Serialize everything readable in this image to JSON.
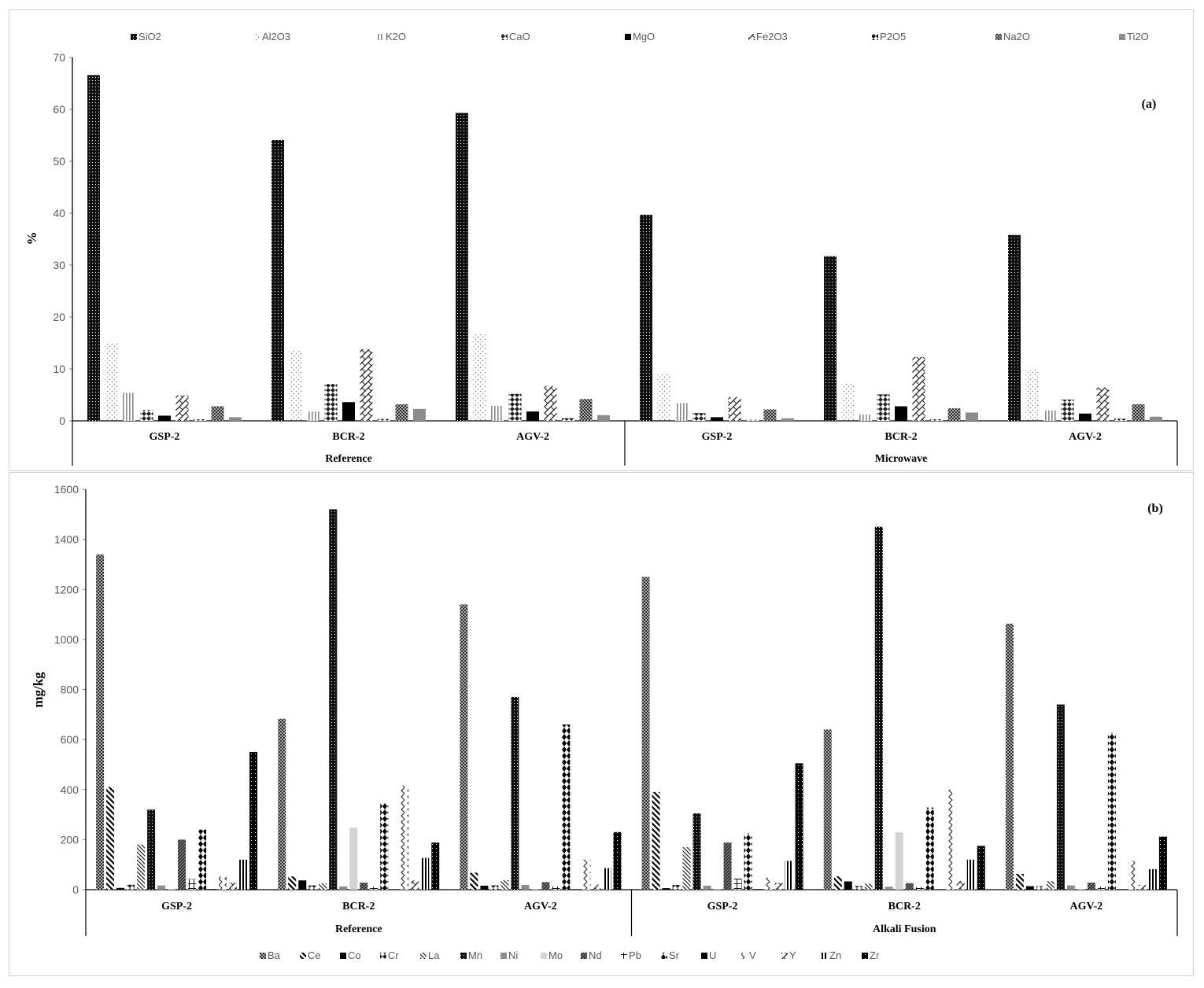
{
  "chart_data": [
    {
      "type": "bar",
      "panel_label": "(a)",
      "ylabel": "%",
      "xlabel": "",
      "ylim": [
        0,
        70
      ],
      "yticks": [
        0,
        10,
        20,
        30,
        40,
        50,
        60,
        70
      ],
      "legend_position": "top",
      "groups": [
        {
          "label": "Reference",
          "categories": [
            "GSP-2",
            "BCR-2",
            "AGV-2"
          ]
        },
        {
          "label": "Microwave",
          "categories": [
            "GSP-2",
            "BCR-2",
            "AGV-2"
          ]
        }
      ],
      "categories": [
        "GSP-2",
        "BCR-2",
        "AGV-2",
        "GSP-2",
        "BCR-2",
        "AGV-2"
      ],
      "series": [
        {
          "name": "SiO2",
          "pattern": "dense",
          "values": [
            66.6,
            54.1,
            59.3,
            39.7,
            31.7,
            35.8
          ]
        },
        {
          "name": "Al2O3",
          "pattern": "dots",
          "values": [
            14.9,
            13.5,
            16.9,
            9.0,
            7.2,
            9.8
          ]
        },
        {
          "name": "K2O",
          "pattern": "vlines",
          "values": [
            5.4,
            1.8,
            2.9,
            3.4,
            1.2,
            2.0
          ]
        },
        {
          "name": "CaO",
          "pattern": "diamonds",
          "values": [
            2.1,
            7.1,
            5.2,
            1.5,
            5.1,
            4.1
          ]
        },
        {
          "name": "MgO",
          "pattern": "solid-black",
          "values": [
            1.0,
            3.6,
            1.8,
            0.7,
            2.8,
            1.4
          ]
        },
        {
          "name": "Fe2O3",
          "pattern": "zigzag",
          "values": [
            4.9,
            13.8,
            6.7,
            4.6,
            12.3,
            6.4
          ]
        },
        {
          "name": "P2O5",
          "pattern": "bowtie",
          "values": [
            0.3,
            0.35,
            0.5,
            0.2,
            0.3,
            0.4
          ]
        },
        {
          "name": "Na2O",
          "pattern": "checker",
          "values": [
            2.8,
            3.2,
            4.2,
            2.2,
            2.4,
            3.2
          ]
        },
        {
          "name": "Ti2O",
          "pattern": "gray",
          "values": [
            0.7,
            2.3,
            1.1,
            0.5,
            1.6,
            0.8
          ]
        }
      ]
    },
    {
      "type": "bar",
      "panel_label": "(b)",
      "ylabel": "mg/kg",
      "xlabel": "",
      "ylim": [
        0,
        1600
      ],
      "yticks": [
        0,
        200,
        400,
        600,
        800,
        1000,
        1200,
        1400,
        1600
      ],
      "legend_position": "bottom",
      "groups": [
        {
          "label": "Reference",
          "categories": [
            "GSP-2",
            "BCR-2",
            "AGV-2"
          ]
        },
        {
          "label": "Alkali Fusion",
          "categories": [
            "GSP-2",
            "BCR-2",
            "AGV-2"
          ]
        }
      ],
      "categories": [
        "GSP-2",
        "BCR-2",
        "AGV-2",
        "GSP-2",
        "BCR-2",
        "AGV-2"
      ],
      "series": [
        {
          "name": "Ba",
          "pattern": "checker",
          "values": [
            1340,
            683,
            1140,
            1250,
            640,
            1063
          ]
        },
        {
          "name": "Ce",
          "pattern": "diag-thick",
          "values": [
            410,
            53,
            68,
            390,
            53,
            63
          ]
        },
        {
          "name": "Co",
          "pattern": "solid-black",
          "values": [
            7,
            37,
            16,
            6,
            33,
            14
          ]
        },
        {
          "name": "Cr",
          "pattern": "diamonds",
          "values": [
            20,
            17,
            17,
            19,
            15,
            14
          ]
        },
        {
          "name": "La",
          "pattern": "diag-thin",
          "values": [
            180,
            25,
            38,
            170,
            24,
            34
          ]
        },
        {
          "name": "Mn",
          "pattern": "dense",
          "values": [
            320,
            1520,
            770,
            305,
            1450,
            740
          ]
        },
        {
          "name": "Ni",
          "pattern": "gray",
          "values": [
            17,
            13,
            19,
            16,
            12,
            17
          ]
        },
        {
          "name": "Mo",
          "pattern": "lightgray",
          "values": [
            2,
            248,
            2,
            2,
            230,
            2
          ]
        },
        {
          "name": "Nd",
          "pattern": "hatch-dark",
          "values": [
            200,
            28,
            30,
            188,
            26,
            28
          ]
        },
        {
          "name": "Pb",
          "pattern": "grid",
          "values": [
            42,
            11,
            13,
            44,
            10,
            12
          ]
        },
        {
          "name": "Sr",
          "pattern": "bowtie-dots",
          "values": [
            240,
            346,
            660,
            225,
            328,
            627
          ]
        },
        {
          "name": "U",
          "pattern": "solid-black",
          "values": [
            2.4,
            1.7,
            1.9,
            2.3,
            1.6,
            1.8
          ]
        },
        {
          "name": "V",
          "pattern": "chevrons",
          "values": [
            52,
            416,
            120,
            48,
            400,
            115
          ]
        },
        {
          "name": "Y",
          "pattern": "zigzag",
          "values": [
            28,
            37,
            20,
            27,
            35,
            19
          ]
        },
        {
          "name": "Zn",
          "pattern": "vbars",
          "values": [
            120,
            127,
            86,
            115,
            120,
            82
          ]
        },
        {
          "name": "Zr",
          "pattern": "solid-dots",
          "values": [
            550,
            188,
            230,
            505,
            175,
            212
          ]
        }
      ]
    }
  ]
}
